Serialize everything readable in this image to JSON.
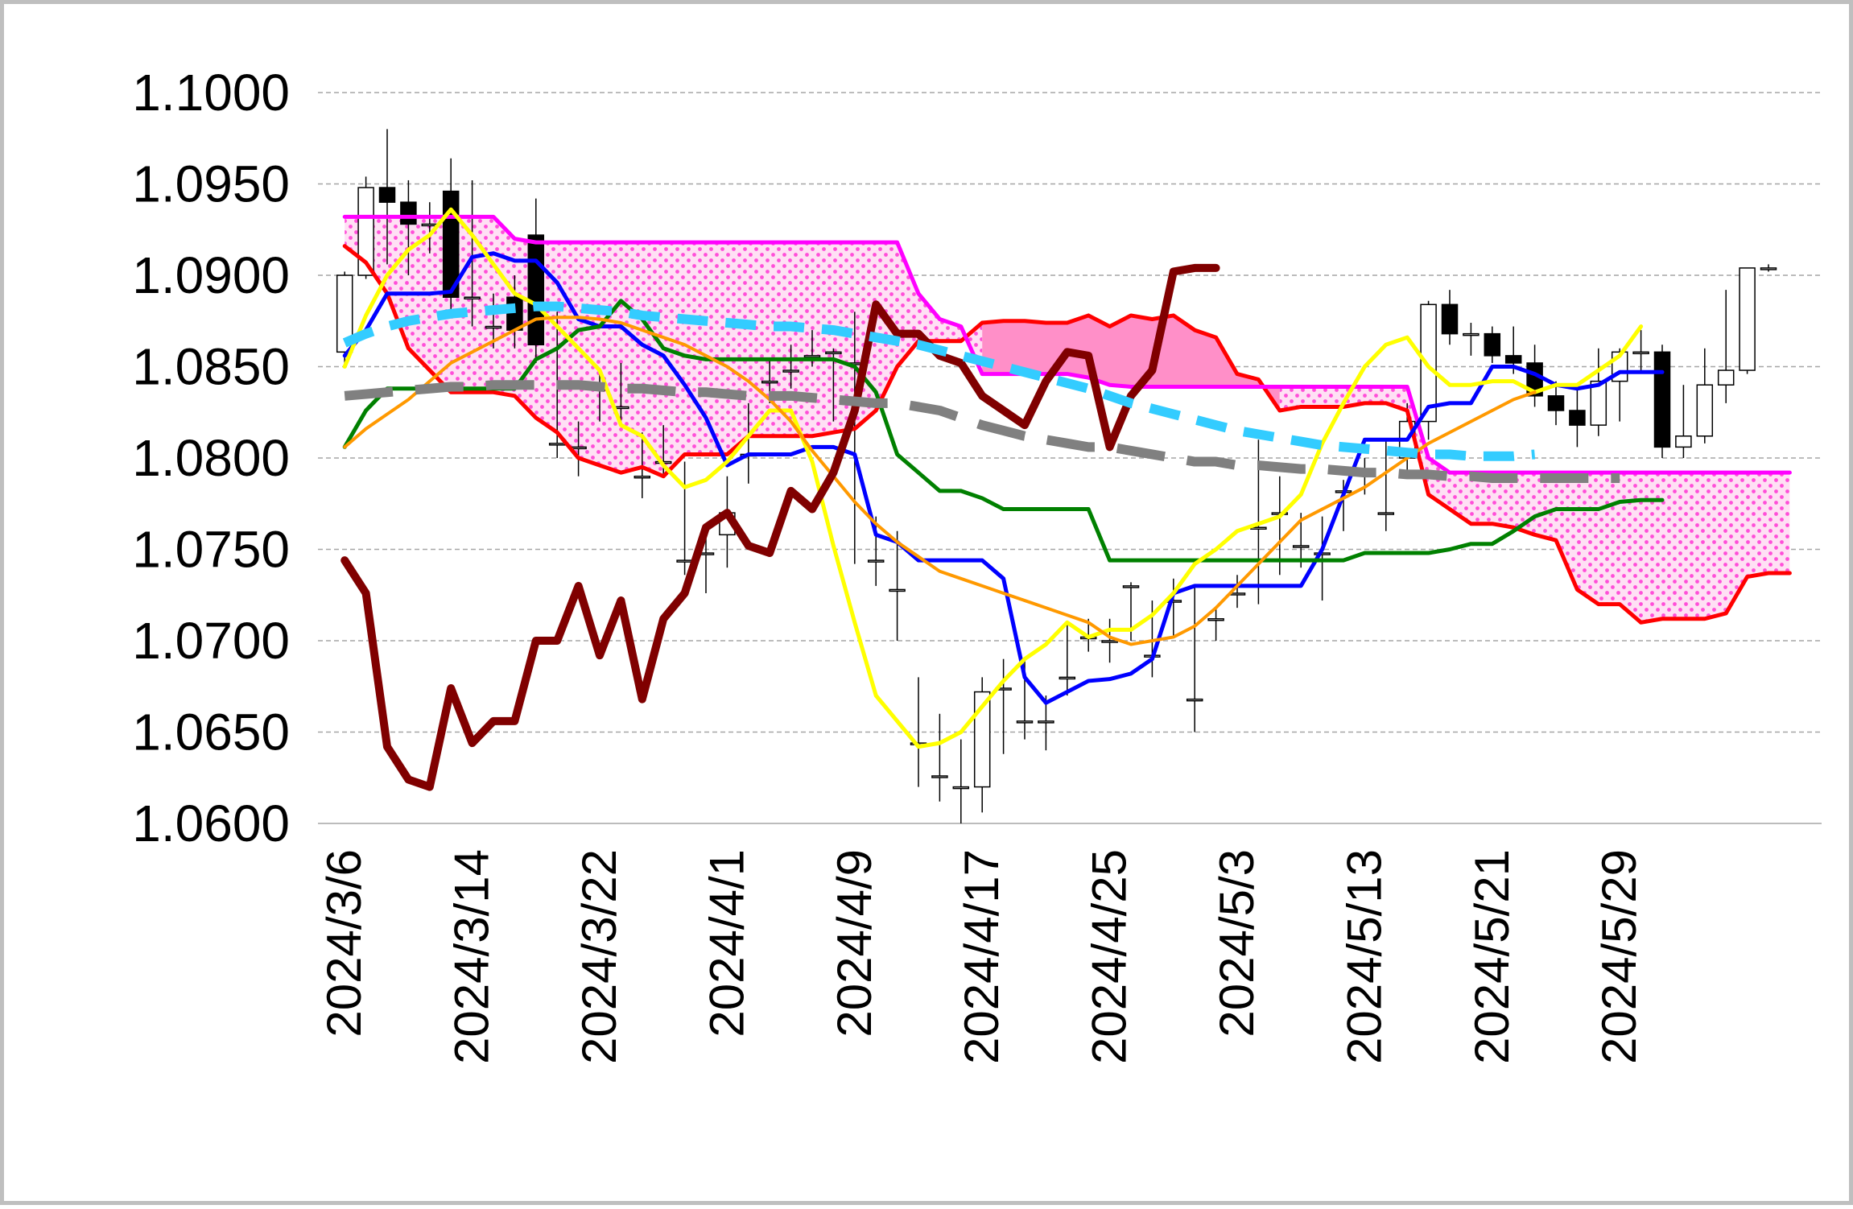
{
  "chart_data": {
    "type": "candlestick",
    "title": "",
    "xlabel": "",
    "ylabel": "",
    "ylim": [
      1.06,
      1.1
    ],
    "y_tick_labels": [
      "1.1000",
      "1.0950",
      "1.0900",
      "1.0850",
      "1.0800",
      "1.0750",
      "1.0700",
      "1.0650",
      "1.0600"
    ],
    "y_tick_values": [
      1.1,
      1.095,
      1.09,
      1.085,
      1.08,
      1.075,
      1.07,
      1.065,
      1.06
    ],
    "x_tick_labels": [
      "2024/3/6",
      "2024/3/14",
      "2024/3/22",
      "2024/4/1",
      "2024/4/9",
      "2024/4/17",
      "2024/4/25",
      "2024/5/3",
      "2024/5/13",
      "2024/5/21",
      "2024/5/29"
    ],
    "x_tick_index": [
      0,
      6,
      12,
      18,
      24,
      30,
      36,
      42,
      48,
      54,
      60
    ],
    "grid": "horizontal dashed",
    "legend": "none",
    "n_slots": 70,
    "candles": {
      "open": [
        1.0858,
        1.09,
        1.0948,
        1.094,
        1.0928,
        1.0946,
        1.0888,
        1.0872,
        1.0888,
        1.0922,
        1.0808,
        1.0806,
        1.0838,
        1.0828,
        1.079,
        1.0798,
        1.0744,
        1.0748,
        1.0758,
        1.0802,
        1.0842,
        1.0848,
        1.0856,
        1.0858,
        1.0852,
        1.0744,
        1.0728,
        1.0644,
        1.0626,
        1.062,
        1.062,
        1.0674,
        1.0656,
        1.0656,
        1.068,
        1.0702,
        1.07,
        1.073,
        1.0692,
        1.0722,
        1.0668,
        1.0712,
        1.0726,
        1.0762,
        1.077,
        1.0752,
        1.0748,
        1.0782,
        1.0792,
        1.077,
        1.08,
        1.082,
        1.0884,
        1.0868,
        1.0868,
        1.0856,
        1.0852,
        1.0834,
        1.0826,
        1.0818,
        1.0842,
        1.0858,
        1.0858,
        1.0806,
        1.0812,
        1.084,
        1.0848,
        1.0904
      ],
      "close": [
        1.09,
        1.0948,
        1.094,
        1.0928,
        1.0928,
        1.0888,
        1.0888,
        1.0872,
        1.087,
        1.0862,
        1.0808,
        1.0806,
        1.0838,
        1.0828,
        1.079,
        1.0798,
        1.0744,
        1.0748,
        1.077,
        1.0802,
        1.0842,
        1.0848,
        1.0856,
        1.0858,
        1.0852,
        1.0744,
        1.0728,
        1.0644,
        1.0626,
        1.062,
        1.0672,
        1.0674,
        1.0656,
        1.0656,
        1.068,
        1.0702,
        1.07,
        1.073,
        1.0692,
        1.0722,
        1.0668,
        1.0712,
        1.0726,
        1.0762,
        1.077,
        1.0752,
        1.0748,
        1.0782,
        1.0792,
        1.077,
        1.082,
        1.0884,
        1.0868,
        1.0868,
        1.0856,
        1.0852,
        1.0834,
        1.0826,
        1.0818,
        1.0842,
        1.0858,
        1.0858,
        1.0806,
        1.0812,
        1.084,
        1.0848,
        1.0904,
        1.0904
      ],
      "high": [
        1.0902,
        1.0954,
        1.098,
        1.0952,
        1.094,
        1.0964,
        1.0952,
        1.089,
        1.09,
        1.0942,
        1.088,
        1.082,
        1.0848,
        1.0852,
        1.0814,
        1.0818,
        1.0798,
        1.076,
        1.079,
        1.083,
        1.0854,
        1.0862,
        1.087,
        1.086,
        1.088,
        1.0768,
        1.076,
        1.068,
        1.066,
        1.0646,
        1.068,
        1.069,
        1.069,
        1.067,
        1.071,
        1.0712,
        1.0712,
        1.0732,
        1.0722,
        1.0734,
        1.073,
        1.0718,
        1.0736,
        1.081,
        1.079,
        1.077,
        1.0768,
        1.0788,
        1.08,
        1.081,
        1.083,
        1.0886,
        1.0892,
        1.0874,
        1.0872,
        1.0872,
        1.0862,
        1.0842,
        1.0838,
        1.086,
        1.086,
        1.087,
        1.0862,
        1.084,
        1.086,
        1.0892,
        1.0904,
        1.0906
      ],
      "low": [
        1.085,
        1.0898,
        1.0906,
        1.09,
        1.0912,
        1.088,
        1.0872,
        1.086,
        1.086,
        1.0852,
        1.08,
        1.079,
        1.082,
        1.082,
        1.0778,
        1.079,
        1.0736,
        1.0726,
        1.074,
        1.0786,
        1.083,
        1.0838,
        1.085,
        1.082,
        1.0742,
        1.073,
        1.07,
        1.062,
        1.0612,
        1.06,
        1.0606,
        1.0638,
        1.0646,
        1.064,
        1.067,
        1.0694,
        1.0688,
        1.07,
        1.068,
        1.0702,
        1.065,
        1.07,
        1.0718,
        1.072,
        1.0736,
        1.074,
        1.0722,
        1.076,
        1.078,
        1.076,
        1.079,
        1.081,
        1.0862,
        1.0856,
        1.0852,
        1.0846,
        1.0828,
        1.0818,
        1.0806,
        1.0812,
        1.082,
        1.0848,
        1.08,
        1.08,
        1.0808,
        1.083,
        1.0846,
        1.0902
      ]
    },
    "series": [
      {
        "color": "#ff0000",
        "width": 5,
        "dash": "",
        "values": [
          1.0916,
          1.0907,
          1.089,
          1.086,
          1.0848,
          1.0836,
          1.0836,
          1.0836,
          1.0834,
          1.0822,
          1.0814,
          1.08,
          1.0796,
          1.0792,
          1.0795,
          1.079,
          1.0802,
          1.0802,
          1.0802,
          1.0812,
          1.0812,
          1.0812,
          1.0812,
          1.0814,
          1.0816,
          1.0826,
          1.085,
          1.0864,
          1.0864,
          1.0864,
          1.0874,
          1.0875,
          1.0875,
          1.0874,
          1.0874,
          1.0878,
          1.0872,
          1.0878,
          1.0876,
          1.0878,
          1.087,
          1.0866,
          1.0846,
          1.0843,
          1.0826,
          1.0828,
          1.0828,
          1.0828,
          1.083,
          1.083,
          1.0826,
          1.078,
          1.0772,
          1.0764,
          1.0764,
          1.0762,
          1.0758,
          1.0755,
          1.0728,
          1.072,
          1.072,
          1.071,
          1.0712,
          1.0712,
          1.0712,
          1.0715,
          1.0735,
          1.0737,
          1.0737
        ]
      },
      {
        "color": "#ff00ff",
        "width": 5,
        "dash": "",
        "values": [
          1.0932,
          1.0932,
          1.0932,
          1.0932,
          1.0932,
          1.0932,
          1.0932,
          1.0932,
          1.092,
          1.0918,
          1.0918,
          1.0918,
          1.0918,
          1.0918,
          1.0918,
          1.0918,
          1.0918,
          1.0918,
          1.0918,
          1.0918,
          1.0918,
          1.0918,
          1.0918,
          1.0918,
          1.0918,
          1.0918,
          1.0918,
          1.089,
          1.0876,
          1.0872,
          1.0846,
          1.0846,
          1.0846,
          1.0846,
          1.0846,
          1.0844,
          1.084,
          1.0839,
          1.0839,
          1.0839,
          1.0839,
          1.0839,
          1.0839,
          1.0839,
          1.0839,
          1.0839,
          1.0839,
          1.0839,
          1.0839,
          1.0839,
          1.0839,
          1.08,
          1.0792,
          1.0792,
          1.0792,
          1.0792,
          1.0792,
          1.0792,
          1.0792,
          1.0792,
          1.0792,
          1.0792,
          1.0792,
          1.0792,
          1.0792,
          1.0792,
          1.0792,
          1.0792,
          1.0792
        ]
      },
      {
        "color": "#0000ff",
        "width": 5,
        "dash": "",
        "values": [
          1.0856,
          1.087,
          1.089,
          1.089,
          1.089,
          1.0891,
          1.091,
          1.0912,
          1.0908,
          1.0908,
          1.0896,
          1.0876,
          1.0872,
          1.0872,
          1.0862,
          1.0856,
          1.084,
          1.0822,
          1.0796,
          1.0802,
          1.0802,
          1.0802,
          1.0806,
          1.0806,
          1.0802,
          1.0758,
          1.0754,
          1.0744,
          1.0744,
          1.0744,
          1.0744,
          1.0734,
          1.068,
          1.0666,
          1.0672,
          1.0678,
          1.0679,
          1.0682,
          1.069,
          1.0726,
          1.073,
          1.073,
          1.073,
          1.073,
          1.073,
          1.073,
          1.075,
          1.078,
          1.081,
          1.081,
          1.081,
          1.0828,
          1.083,
          1.083,
          1.085,
          1.085,
          1.0846,
          1.084,
          1.0838,
          1.084,
          1.0847,
          1.0847,
          1.0847
        ]
      },
      {
        "color": "#008000",
        "width": 5,
        "dash": "",
        "values": [
          1.0806,
          1.0826,
          1.0838,
          1.0838,
          1.0838,
          1.0838,
          1.0838,
          1.0838,
          1.0838,
          1.0854,
          1.086,
          1.087,
          1.0872,
          1.0886,
          1.0876,
          1.086,
          1.0856,
          1.0854,
          1.0854,
          1.0854,
          1.0854,
          1.0854,
          1.0854,
          1.0854,
          1.085,
          1.0836,
          1.0802,
          1.0792,
          1.0782,
          1.0782,
          1.0778,
          1.0772,
          1.0772,
          1.0772,
          1.0772,
          1.0772,
          1.0744,
          1.0744,
          1.0744,
          1.0744,
          1.0744,
          1.0744,
          1.0744,
          1.0744,
          1.0744,
          1.0744,
          1.0744,
          1.0744,
          1.0748,
          1.0748,
          1.0748,
          1.0748,
          1.075,
          1.0753,
          1.0753,
          1.076,
          1.0768,
          1.0772,
          1.0772,
          1.0772,
          1.0776,
          1.0777,
          1.0777
        ]
      },
      {
        "color": "#ffff00",
        "width": 5,
        "dash": "",
        "values": [
          1.085,
          1.0878,
          1.09,
          1.0914,
          1.0922,
          1.0936,
          1.0922,
          1.0906,
          1.089,
          1.0884,
          1.0872,
          1.086,
          1.0848,
          1.0818,
          1.0812,
          1.0796,
          1.0784,
          1.0788,
          1.0798,
          1.0812,
          1.0826,
          1.0826,
          1.0798,
          1.0752,
          1.071,
          1.067,
          1.0656,
          1.0642,
          1.0644,
          1.065,
          1.0664,
          1.0678,
          1.069,
          1.0698,
          1.071,
          1.0702,
          1.0706,
          1.0706,
          1.0714,
          1.0726,
          1.0742,
          1.075,
          1.076,
          1.0764,
          1.0768,
          1.078,
          1.0808,
          1.083,
          1.085,
          1.0862,
          1.0866,
          1.085,
          1.084,
          1.084,
          1.0842,
          1.0842,
          1.0836,
          1.084,
          1.084,
          1.0848,
          1.0856,
          1.0872
        ]
      },
      {
        "color": "#ff9900",
        "width": 4,
        "dash": "",
        "values": [
          1.0806,
          1.0816,
          1.0824,
          1.0832,
          1.0842,
          1.0852,
          1.0858,
          1.0864,
          1.087,
          1.0876,
          1.0877,
          1.0877,
          1.0876,
          1.0874,
          1.087,
          1.0866,
          1.0862,
          1.0856,
          1.085,
          1.0842,
          1.0832,
          1.082,
          1.0804,
          1.079,
          1.0776,
          1.0764,
          1.0754,
          1.0746,
          1.0738,
          1.0734,
          1.073,
          1.0726,
          1.0722,
          1.0718,
          1.0714,
          1.071,
          1.0702,
          1.0698,
          1.07,
          1.0702,
          1.0708,
          1.0718,
          1.073,
          1.0742,
          1.0754,
          1.0766,
          1.0772,
          1.0778,
          1.0784,
          1.0792,
          1.08,
          1.0808,
          1.0814,
          1.082,
          1.0826,
          1.0832,
          1.0836
        ]
      },
      {
        "color": "#800000",
        "width": 10,
        "dash": "",
        "values": [
          1.0744,
          1.0726,
          1.0642,
          1.0624,
          1.062,
          1.0674,
          1.0644,
          1.0656,
          1.0656,
          1.07,
          1.07,
          1.073,
          1.0692,
          1.0722,
          1.0668,
          1.0712,
          1.0726,
          1.0762,
          1.077,
          1.0752,
          1.0748,
          1.0782,
          1.0772,
          1.0792,
          1.0826,
          1.0884,
          1.0868,
          1.0868,
          1.0856,
          1.0852,
          1.0834,
          1.0826,
          1.0818,
          1.0842,
          1.0858,
          1.0856,
          1.0806,
          1.0834,
          1.0848,
          1.0902,
          1.0904,
          1.0904
        ]
      },
      {
        "color": "#808080",
        "width": 12,
        "dash": "60 28",
        "values": [
          1.0834,
          1.0835,
          1.0836,
          1.0837,
          1.0838,
          1.0839,
          1.0839,
          1.084,
          1.084,
          1.084,
          1.084,
          1.084,
          1.0839,
          1.0838,
          1.0838,
          1.0837,
          1.0836,
          1.0836,
          1.0835,
          1.0834,
          1.0834,
          1.0834,
          1.0833,
          1.0832,
          1.0831,
          1.083,
          1.083,
          1.0828,
          1.0826,
          1.0822,
          1.0818,
          1.0815,
          1.0812,
          1.081,
          1.0808,
          1.0806,
          1.0806,
          1.0804,
          1.0802,
          1.08,
          1.0798,
          1.0798,
          1.0796,
          1.0796,
          1.0795,
          1.0794,
          1.0794,
          1.0793,
          1.0792,
          1.0792,
          1.0791,
          1.0791,
          1.079,
          1.079,
          1.0789,
          1.0789,
          1.0789,
          1.0789,
          1.0789,
          1.0789,
          1.0789
        ]
      },
      {
        "color": "#33ccff",
        "width": 12,
        "dash": "38 22",
        "values": [
          1.0863,
          1.0868,
          1.0872,
          1.0875,
          1.0877,
          1.0879,
          1.088,
          1.0881,
          1.0882,
          1.0883,
          1.0883,
          1.0882,
          1.0881,
          1.088,
          1.0878,
          1.0877,
          1.0876,
          1.0875,
          1.0874,
          1.0873,
          1.0872,
          1.0872,
          1.0871,
          1.087,
          1.0868,
          1.0866,
          1.0864,
          1.0862,
          1.0859,
          1.0856,
          1.0853,
          1.085,
          1.0847,
          1.0844,
          1.0841,
          1.0838,
          1.0834,
          1.083,
          1.0827,
          1.0824,
          1.0821,
          1.0818,
          1.0815,
          1.0813,
          1.0811,
          1.0809,
          1.0807,
          1.0806,
          1.0805,
          1.0804,
          1.0803,
          1.0802,
          1.0802,
          1.0801,
          1.0801,
          1.0801,
          1.0802
        ]
      }
    ]
  }
}
